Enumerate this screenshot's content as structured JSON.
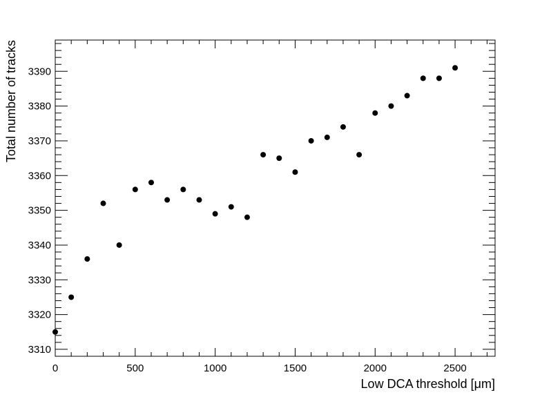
{
  "chart_data": {
    "type": "scatter",
    "title": "",
    "xlabel": "Low DCA threshold [μm]",
    "ylabel": "Total number of tracks",
    "xlim": [
      0,
      2750
    ],
    "ylim": [
      3308,
      3399
    ],
    "x_ticks": [
      0,
      500,
      1000,
      1500,
      2000,
      2500
    ],
    "x_tick_labels": [
      "0",
      "500",
      "1000",
      "1500",
      "2000",
      "2500"
    ],
    "y_ticks": [
      3310,
      3320,
      3330,
      3340,
      3350,
      3360,
      3370,
      3380,
      3390
    ],
    "y_tick_labels": [
      "3310",
      "3320",
      "3330",
      "3340",
      "3350",
      "3360",
      "3370",
      "3380",
      "3390"
    ],
    "grid": false,
    "marker_color": "#000000",
    "series": [
      {
        "x": [
          0,
          100,
          200,
          300,
          400,
          500,
          600,
          700,
          800,
          900,
          1000,
          1100,
          1200,
          1300,
          1400,
          1500,
          1600,
          1700,
          1800,
          1900,
          2000,
          2100,
          2200,
          2300,
          2400,
          2500
        ],
        "y": [
          3315,
          3325,
          3336,
          3352,
          3340,
          3356,
          3358,
          3353,
          3356,
          3353,
          3349,
          3351,
          3348,
          3366,
          3365,
          3361,
          3370,
          3371,
          3374,
          3366,
          3378,
          3380,
          3383,
          3388,
          3388,
          3391
        ]
      }
    ]
  }
}
